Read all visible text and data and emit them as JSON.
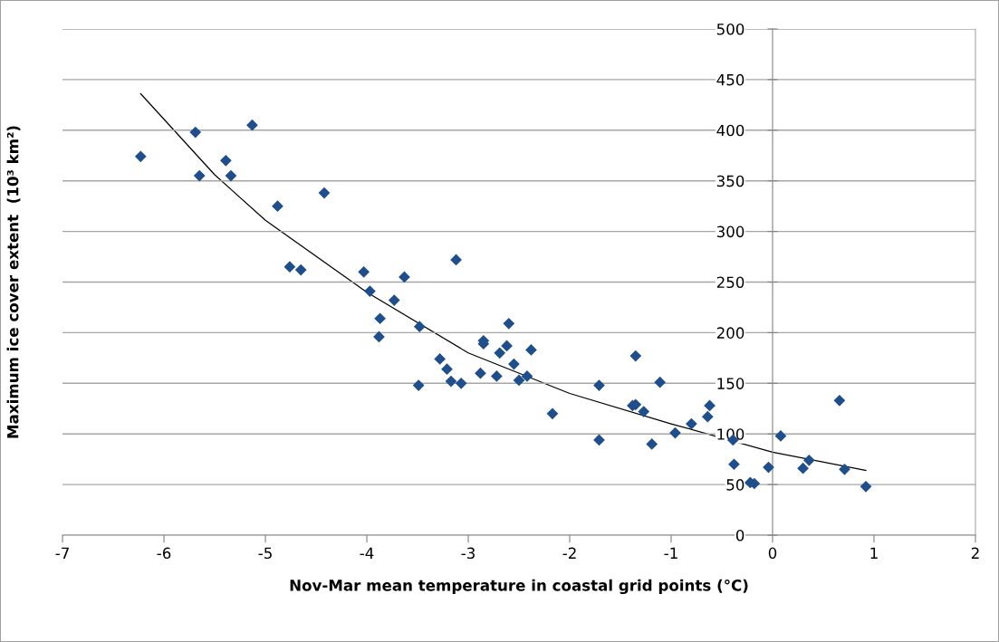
{
  "chart_data": {
    "type": "scatter",
    "xlabel": "Nov-Mar mean temperature in coastal grid points (°C)",
    "ylabel": "Maximum ice cover extent  (10³ km²)",
    "xlim": [
      -7,
      2
    ],
    "xticks": [
      -7,
      -6,
      -5,
      -4,
      -3,
      -2,
      -1,
      0,
      1,
      2
    ],
    "ylim": [
      0,
      500
    ],
    "yticks": [
      0,
      50,
      100,
      150,
      200,
      250,
      300,
      350,
      400,
      450,
      500
    ],
    "grid": "y",
    "series": [
      {
        "type": "scatter",
        "marker": "diamond",
        "color": "#1f4e8c",
        "x": [
          -6.23,
          -5.69,
          -5.65,
          -5.39,
          -5.34,
          -5.13,
          -4.88,
          -4.76,
          -4.65,
          -4.42,
          -4.03,
          -3.97,
          -3.87,
          -3.88,
          -3.73,
          -3.63,
          -3.48,
          -3.49,
          -3.12,
          -3.28,
          -3.21,
          -3.17,
          -3.07,
          -2.88,
          -2.85,
          -2.85,
          -2.72,
          -2.69,
          -2.62,
          -2.6,
          -2.55,
          -2.5,
          -2.42,
          -2.38,
          -2.17,
          -1.71,
          -1.71,
          -1.35,
          -1.38,
          -1.35,
          -1.27,
          -1.11,
          -1.19,
          -0.96,
          -0.8,
          -0.64,
          -0.62,
          -0.39,
          -0.38,
          -0.22,
          -0.18,
          -0.04,
          0.08,
          0.3,
          0.36,
          0.66,
          0.71,
          0.92
        ],
        "values": [
          374,
          398,
          355,
          370,
          355,
          405,
          325,
          265,
          262,
          338,
          260,
          241,
          214,
          196,
          232,
          255,
          206,
          148,
          272,
          174,
          164,
          152,
          150,
          160,
          192,
          189,
          157,
          180,
          187,
          209,
          169,
          153,
          157,
          183,
          120,
          148,
          94,
          177,
          128,
          129,
          122,
          151,
          90,
          101,
          110,
          117,
          128,
          94,
          70,
          52,
          51,
          67,
          98,
          66,
          74,
          133,
          65,
          48
        ]
      },
      {
        "type": "line",
        "color": "#000000",
        "line_style": "solid",
        "x": [
          -6.23,
          -5.5,
          -5,
          -4,
          -3,
          -2,
          -1,
          0,
          0.92
        ],
        "values": [
          436,
          356,
          311,
          240,
          180,
          140,
          110,
          82,
          64
        ]
      }
    ]
  }
}
